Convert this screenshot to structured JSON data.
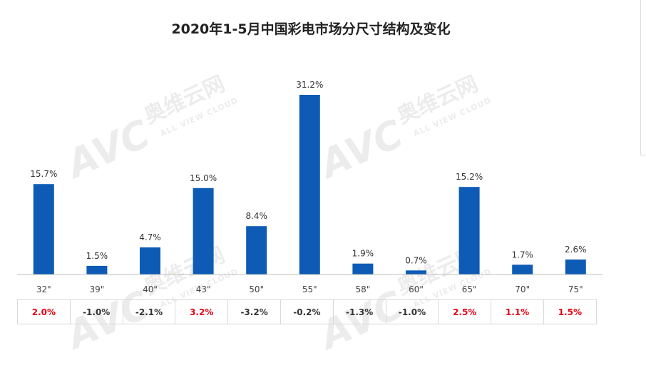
{
  "chart_data": {
    "type": "bar",
    "title": "2020年1-5月中国彩电市场分尺寸结构及变化",
    "categories": [
      "32\"",
      "39\"",
      "40\"",
      "43\"",
      "50\"",
      "55\"",
      "58\"",
      "60\"",
      "65\"",
      "70\"",
      "75\""
    ],
    "values": [
      15.7,
      1.5,
      4.7,
      15.0,
      8.4,
      31.2,
      1.9,
      0.7,
      15.2,
      1.7,
      2.6
    ],
    "value_labels": [
      "15.7%",
      "1.5%",
      "4.7%",
      "15.0%",
      "8.4%",
      "31.2%",
      "1.9%",
      "0.7%",
      "15.2%",
      "1.7%",
      "2.6%"
    ],
    "changes": [
      "2.0%",
      "-1.0%",
      "-2.1%",
      "3.2%",
      "-3.2%",
      "-0.2%",
      "-1.3%",
      "-1.0%",
      "2.5%",
      "1.1%",
      "1.5%"
    ],
    "change_values": [
      2.0,
      -1.0,
      -2.1,
      3.2,
      -3.2,
      -0.2,
      -1.3,
      -1.0,
      2.5,
      1.1,
      1.5
    ],
    "ylim": [
      0,
      33
    ],
    "xlabel": "",
    "ylabel": "",
    "grid": false,
    "legend": "none",
    "colors": {
      "bar": "#0d5bb5",
      "positive_change": "#e60012",
      "negative_change": "#333333"
    }
  },
  "watermark": {
    "logo": "AVC",
    "cn": "奥维云网",
    "en": "ALL VIEW CLOUD"
  }
}
